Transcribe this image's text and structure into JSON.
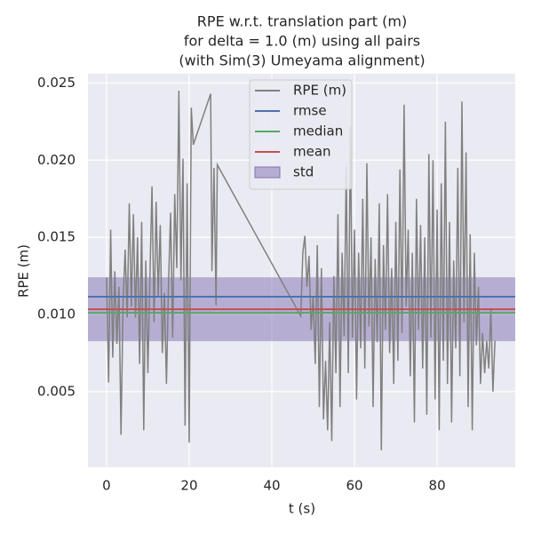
{
  "chart_data": {
    "type": "line",
    "title": [
      "RPE w.r.t. translation part (m)",
      "for delta = 1.0 (m) using all pairs",
      "(with Sim(3) Umeyama alignment)"
    ],
    "xlabel": "t (s)",
    "ylabel": "RPE (m)",
    "xlim": [
      -4.5,
      98.9
    ],
    "ylim": [
      0.0001,
      0.0256
    ],
    "xticks": [
      0,
      20,
      40,
      60,
      80
    ],
    "yticks": [
      0.005,
      {
        "value": 0.01,
        "label": "0.010"
      },
      0.015,
      {
        "value": 0.02,
        "label": "0.020"
      },
      0.025
    ],
    "grid": true,
    "background": "#eaeaf2",
    "legend_position": "upper center",
    "series": [
      {
        "name": "RPE (m)",
        "color": "#808080",
        "x": [
          0,
          0.5,
          1,
          1.5,
          2,
          2.5,
          3,
          3.5,
          4,
          4.5,
          5,
          5.5,
          6,
          6.5,
          7,
          7.5,
          8,
          8.5,
          9,
          9.5,
          10,
          10.5,
          11,
          11.5,
          12,
          12.5,
          13,
          13.5,
          14,
          14.5,
          15,
          15.5,
          16,
          16.5,
          17,
          17.5,
          18,
          18.5,
          19,
          19.5,
          20,
          20.5,
          21,
          25.2,
          25.5,
          26,
          26.5,
          26.8,
          47,
          47.5,
          48,
          48.5,
          49,
          49.5,
          50,
          50.5,
          51,
          51.5,
          52,
          52.5,
          53,
          53.5,
          54,
          54.5,
          55,
          55.5,
          56,
          56.5,
          57,
          57.5,
          58,
          58.5,
          59,
          59.5,
          60,
          60.5,
          61,
          61.5,
          62,
          62.5,
          63,
          63.5,
          64,
          64.5,
          65,
          65.5,
          66,
          66.5,
          67,
          67.5,
          68,
          68.5,
          69,
          69.5,
          70,
          70.5,
          71,
          71.5,
          72,
          72.5,
          73,
          73.5,
          74,
          74.5,
          75,
          75.5,
          76,
          76.5,
          77,
          77.5,
          78,
          78.5,
          79,
          79.5,
          80,
          80.5,
          81,
          81.5,
          82,
          82.5,
          83,
          83.5,
          84,
          84.5,
          85,
          85.5,
          86,
          86.5,
          87,
          87.5,
          88,
          88.5,
          89,
          89.5,
          90,
          90.5,
          91,
          91.5,
          92,
          92.5,
          93,
          93.5,
          94
        ],
        "values": [
          0.0124,
          0.0056,
          0.0155,
          0.0072,
          0.0128,
          0.0081,
          0.0118,
          0.0022,
          0.0108,
          0.0142,
          0.0098,
          0.0172,
          0.0105,
          0.0165,
          0.0098,
          0.015,
          0.0068,
          0.016,
          0.0025,
          0.0135,
          0.0062,
          0.0125,
          0.0183,
          0.0095,
          0.0173,
          0.0112,
          0.0158,
          0.0075,
          0.0114,
          0.0055,
          0.012,
          0.0166,
          0.0085,
          0.0178,
          0.013,
          0.0245,
          0.0122,
          0.0201,
          0.0028,
          0.0185,
          0.0017,
          0.0234,
          0.021,
          0.0243,
          0.0128,
          0.0195,
          0.0106,
          0.0197,
          0.0099,
          0.014,
          0.0151,
          0.0118,
          0.0138,
          0.009,
          0.0112,
          0.0068,
          0.0145,
          0.004,
          0.013,
          0.0032,
          0.007,
          0.0025,
          0.0095,
          0.0018,
          0.0125,
          0.0062,
          0.0165,
          0.004,
          0.014,
          0.0086,
          0.0196,
          0.0062,
          0.0222,
          0.0085,
          0.0155,
          0.0045,
          0.014,
          0.0078,
          0.0175,
          0.0065,
          0.0198,
          0.0092,
          0.015,
          0.004,
          0.0136,
          0.0082,
          0.0172,
          0.0012,
          0.0145,
          0.009,
          0.0178,
          0.0075,
          0.013,
          0.0055,
          0.016,
          0.007,
          0.0194,
          0.0088,
          0.0236,
          0.0105,
          0.0155,
          0.006,
          0.014,
          0.003,
          0.0175,
          0.009,
          0.0158,
          0.0065,
          0.015,
          0.0035,
          0.0204,
          0.0085,
          0.02,
          0.0045,
          0.0168,
          0.0025,
          0.0185,
          0.007,
          0.0225,
          0.0055,
          0.016,
          0.003,
          0.0135,
          0.0078,
          0.0195,
          0.006,
          0.0238,
          0.0095,
          0.0205,
          0.004,
          0.0152,
          0.0025,
          0.014,
          0.008,
          0.0118,
          0.0055,
          0.0088,
          0.0062,
          0.0083,
          0.0065,
          0.0104,
          0.005,
          0.0083
        ]
      },
      {
        "name": "rmse",
        "color": "#4c72b0",
        "value": 0.01115
      },
      {
        "name": "median",
        "color": "#55a868",
        "value": 0.01011
      },
      {
        "name": "mean",
        "color": "#c44e52",
        "value": 0.01034
      },
      {
        "name": "std",
        "color": "#8172b2",
        "value": 0.00207
      }
    ]
  }
}
